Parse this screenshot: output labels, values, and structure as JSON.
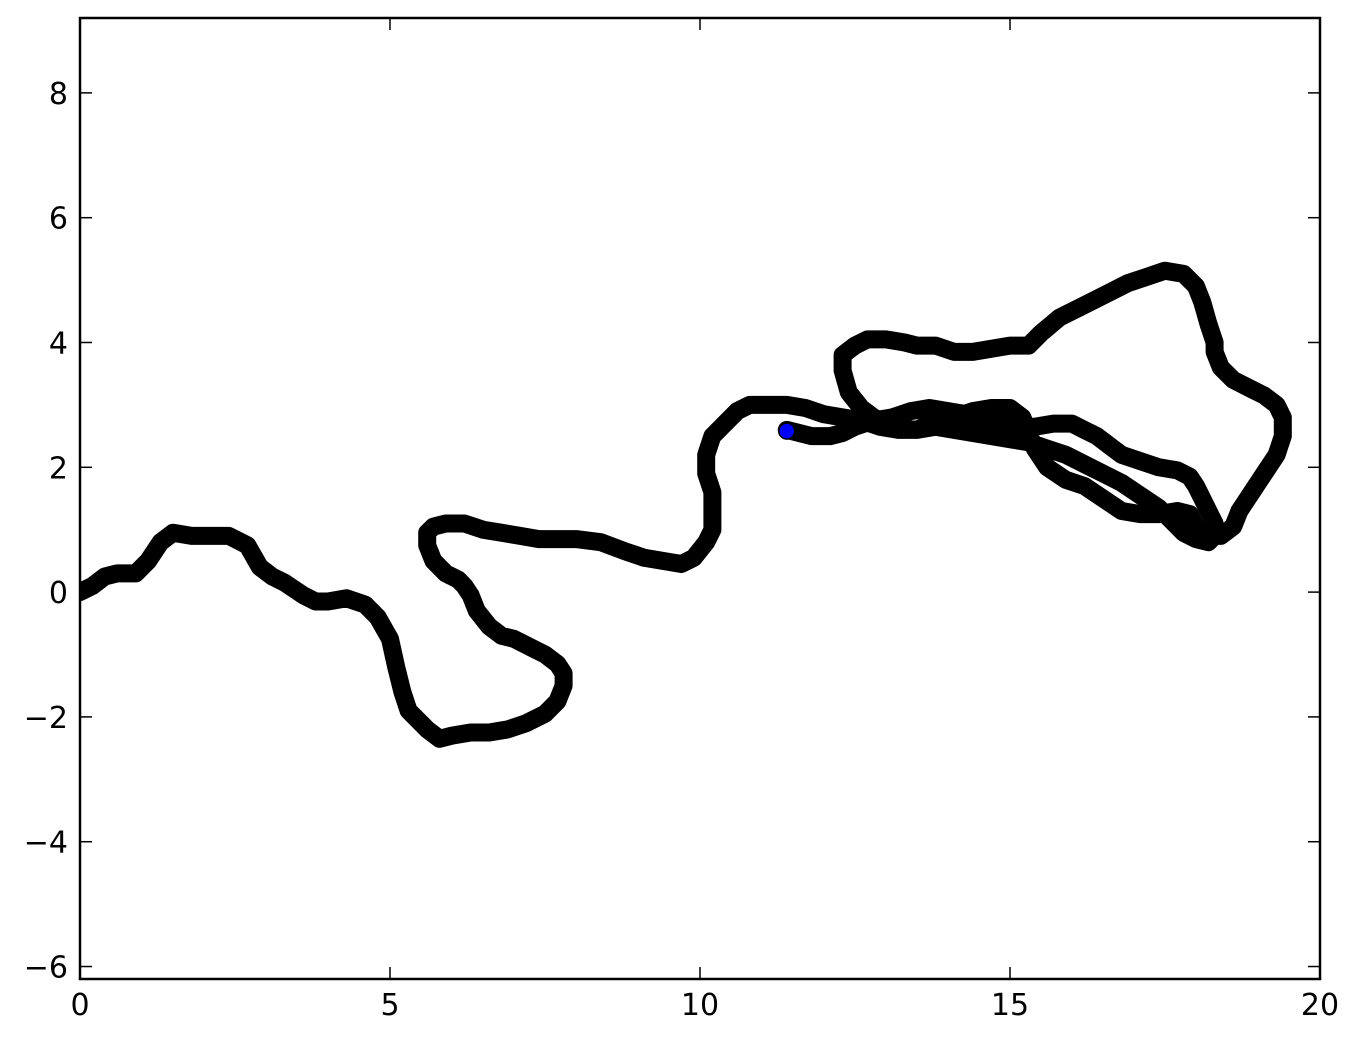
{
  "chart_data": {
    "type": "line",
    "title": "",
    "xlabel": "",
    "ylabel": "",
    "xlim": [
      0,
      20
    ],
    "ylim": [
      -6.2,
      9.2
    ],
    "xticks": [
      0,
      5,
      10,
      15,
      20
    ],
    "yticks": [
      -6,
      -4,
      -2,
      0,
      2,
      4,
      6,
      8
    ],
    "xtick_labels": [
      "0",
      "5",
      "10",
      "15",
      "20"
    ],
    "ytick_labels": [
      "−6",
      "−4",
      "−2",
      "0",
      "2",
      "4",
      "6",
      "8"
    ],
    "grid": false,
    "legend": "none",
    "series": [
      {
        "name": "path",
        "color": "#000000",
        "x": [
          0.0,
          0.2,
          0.4,
          0.6,
          0.9,
          1.1,
          1.3,
          1.5,
          1.8,
          2.1,
          2.4,
          2.7,
          2.9,
          3.1,
          3.3,
          3.6,
          3.8,
          4.0,
          4.3,
          4.6,
          4.8,
          5.0,
          5.1,
          5.2,
          5.3,
          5.6,
          5.8,
          6.0,
          6.3,
          6.6,
          6.9,
          7.2,
          7.5,
          7.7,
          7.8,
          7.8,
          7.7,
          7.5,
          7.3,
          7.0,
          6.8,
          6.6,
          6.4,
          6.3,
          6.2,
          6.1,
          5.9,
          5.7,
          5.6,
          5.6,
          5.7,
          5.9,
          6.2,
          6.5,
          6.8,
          7.1,
          7.4,
          7.7,
          8.0,
          8.4,
          8.8,
          9.1,
          9.4,
          9.7,
          9.9,
          10.1,
          10.2,
          10.2,
          10.2,
          10.1,
          10.1,
          10.2,
          10.4,
          10.6,
          10.8,
          11.1,
          11.4,
          11.7,
          12.0,
          12.3,
          12.6,
          12.9,
          13.2,
          13.5,
          13.8,
          14.1,
          14.4,
          14.7,
          15.0,
          15.2,
          15.3,
          15.4,
          15.6,
          15.9,
          16.2,
          16.5,
          16.8,
          17.1,
          17.4,
          17.7,
          17.9,
          18.0,
          18.2,
          18.4,
          18.6,
          18.7,
          18.8,
          18.9,
          19.1,
          19.3,
          19.4,
          19.4,
          19.3,
          19.1,
          18.9,
          18.6,
          18.4,
          18.3,
          18.3,
          18.2,
          18.1,
          18.0,
          17.8,
          17.5,
          17.2,
          16.9,
          16.6,
          16.2,
          15.8,
          15.5,
          15.3,
          15.0,
          14.7,
          14.4,
          14.1,
          13.8,
          13.5,
          13.3,
          13.0,
          12.7,
          12.5,
          12.3,
          12.3,
          12.4,
          12.6,
          12.8,
          13.0,
          13.2,
          13.5,
          13.8,
          14.1,
          14.4,
          14.7,
          15.0,
          15.3,
          15.6,
          15.9,
          16.2,
          16.5,
          16.8,
          17.1,
          17.4,
          17.6,
          17.8,
          18.0,
          18.2,
          18.3,
          18.3,
          18.2,
          18.1,
          18.0,
          17.9,
          17.7,
          17.4,
          17.1,
          16.8,
          16.6,
          16.4,
          16.2,
          16.0,
          15.7,
          15.4,
          15.2,
          15.0,
          14.7,
          14.3,
          14.0,
          13.7,
          13.4,
          13.1,
          12.8,
          12.5,
          12.3,
          12.1,
          11.8,
          11.6,
          11.4,
          11.6
        ],
        "y": [
          0.0,
          0.1,
          0.25,
          0.3,
          0.3,
          0.5,
          0.8,
          0.95,
          0.9,
          0.9,
          0.9,
          0.75,
          0.4,
          0.25,
          0.15,
          -0.05,
          -0.15,
          -0.15,
          -0.1,
          -0.2,
          -0.4,
          -0.75,
          -1.2,
          -1.6,
          -1.9,
          -2.2,
          -2.35,
          -2.3,
          -2.25,
          -2.25,
          -2.2,
          -2.1,
          -1.95,
          -1.75,
          -1.5,
          -1.3,
          -1.15,
          -1.0,
          -0.9,
          -0.75,
          -0.7,
          -0.55,
          -0.3,
          -0.05,
          0.1,
          0.2,
          0.3,
          0.5,
          0.75,
          0.95,
          1.05,
          1.1,
          1.1,
          1.0,
          0.95,
          0.9,
          0.85,
          0.85,
          0.85,
          0.8,
          0.65,
          0.55,
          0.5,
          0.45,
          0.55,
          0.8,
          1.0,
          1.3,
          1.6,
          1.9,
          2.2,
          2.5,
          2.7,
          2.9,
          3.0,
          3.0,
          3.0,
          2.95,
          2.85,
          2.8,
          2.75,
          2.65,
          2.6,
          2.6,
          2.75,
          2.8,
          2.9,
          2.95,
          2.95,
          2.8,
          2.55,
          2.3,
          2.0,
          1.8,
          1.7,
          1.5,
          1.3,
          1.25,
          1.25,
          1.3,
          1.25,
          1.05,
          0.9,
          0.9,
          1.05,
          1.3,
          1.45,
          1.6,
          1.9,
          2.2,
          2.5,
          2.8,
          3.0,
          3.15,
          3.25,
          3.4,
          3.6,
          3.85,
          4.0,
          4.3,
          4.65,
          4.9,
          5.1,
          5.15,
          5.05,
          4.95,
          4.8,
          4.6,
          4.4,
          4.15,
          3.95,
          3.95,
          3.9,
          3.85,
          3.85,
          3.95,
          3.95,
          4.0,
          4.05,
          4.05,
          3.95,
          3.8,
          3.55,
          3.2,
          2.95,
          2.8,
          2.7,
          2.65,
          2.6,
          2.65,
          2.6,
          2.55,
          2.5,
          2.45,
          2.4,
          2.3,
          2.2,
          2.05,
          1.9,
          1.75,
          1.55,
          1.35,
          1.15,
          0.95,
          0.85,
          0.8,
          0.9,
          1.1,
          1.3,
          1.5,
          1.7,
          1.85,
          1.95,
          2.0,
          2.1,
          2.2,
          2.35,
          2.5,
          2.6,
          2.7,
          2.7,
          2.65,
          2.65,
          2.7,
          2.75,
          2.85,
          2.9,
          2.95,
          2.9,
          2.8,
          2.75,
          2.65,
          2.55,
          2.5,
          2.5,
          2.55,
          2.6,
          2.55
        ]
      },
      {
        "name": "current-position",
        "color": "#0000ff",
        "marker": "circle",
        "x": [
          11.4
        ],
        "y": [
          2.58
        ]
      }
    ]
  }
}
